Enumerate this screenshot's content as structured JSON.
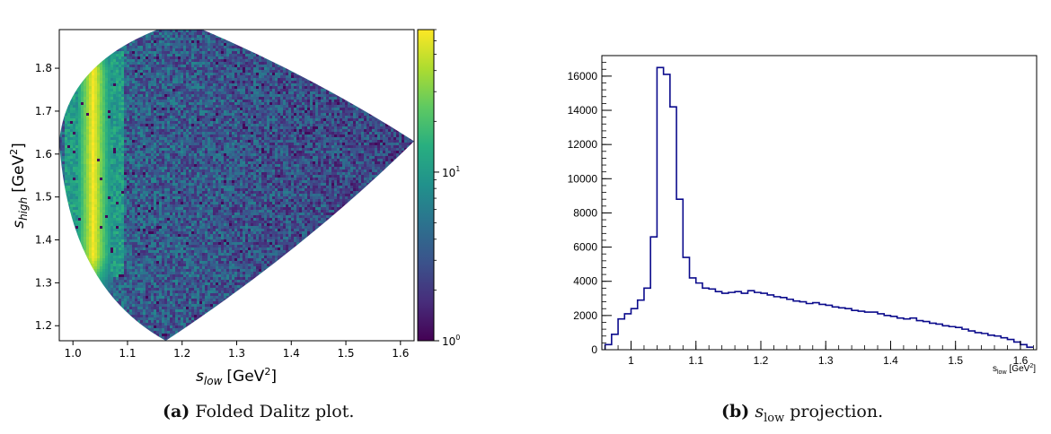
{
  "figure": {
    "left_panel": {
      "caption_tag": "(a)",
      "caption_text": "Folded Dalitz plot."
    },
    "right_panel": {
      "caption_tag": "(b)",
      "caption_symbol": "s",
      "caption_subscript": "low",
      "caption_text": "projection."
    }
  },
  "chart_data": [
    {
      "type": "heatmap",
      "xlabel": {
        "base": "s",
        "sub": "low",
        "unit": "[GeV",
        "sup": "2",
        "close": "]"
      },
      "ylabel": {
        "base": "s",
        "sub": "high",
        "unit": "[GeV",
        "sup": "2",
        "close": "]"
      },
      "xlim": [
        0.975,
        1.625
      ],
      "ylim": [
        1.165,
        1.89
      ],
      "xticks": [
        "1.0",
        "1.1",
        "1.2",
        "1.3",
        "1.4",
        "1.5",
        "1.6"
      ],
      "yticks": [
        "1.2",
        "1.3",
        "1.4",
        "1.5",
        "1.6",
        "1.7",
        "1.8"
      ],
      "boundary": {
        "apex": [
          1.625,
          1.63
        ],
        "bottom": [
          1.17,
          1.165
        ],
        "top_start": [
          1.155,
          1.89
        ],
        "left_edge": [
          0.975,
          1.63
        ]
      },
      "band": {
        "center": 1.035,
        "width": 0.03,
        "ymin": 1.34,
        "ymax": 1.84
      },
      "colorbar": {
        "scale": "log",
        "range": [
          1,
          70
        ],
        "labels": [
          {
            "base": "10",
            "exp": "0",
            "value": 1
          },
          {
            "base": "10",
            "exp": "1",
            "value": 10
          }
        ],
        "colors": [
          "#440154",
          "#472d7b",
          "#3b528b",
          "#2c728e",
          "#21918c",
          "#28ae80",
          "#5ec962",
          "#addc30",
          "#fde725"
        ]
      }
    },
    {
      "type": "step",
      "xlabel": {
        "base": "s",
        "sub": "low",
        "unit": "[GeV",
        "sup": "2",
        "close": "]"
      },
      "xlim": [
        0.955,
        1.625
      ],
      "ylim": [
        0,
        17200
      ],
      "xticks": [
        "1",
        "1.1",
        "1.2",
        "1.3",
        "1.4",
        "1.5",
        "1.6"
      ],
      "yticks": [
        "0",
        "2000",
        "4000",
        "6000",
        "8000",
        "10000",
        "12000",
        "14000",
        "16000"
      ],
      "line_color": "#0b0b8c",
      "bin_width": 0.01,
      "x_start": 0.96,
      "values": [
        300,
        900,
        1800,
        2100,
        2400,
        2900,
        3600,
        6600,
        16500,
        16100,
        14200,
        8800,
        5400,
        4200,
        3900,
        3600,
        3550,
        3400,
        3300,
        3350,
        3400,
        3300,
        3450,
        3350,
        3300,
        3200,
        3100,
        3050,
        2950,
        2850,
        2800,
        2700,
        2750,
        2650,
        2600,
        2500,
        2450,
        2400,
        2300,
        2250,
        2200,
        2200,
        2100,
        2000,
        1950,
        1850,
        1800,
        1850,
        1700,
        1650,
        1550,
        1500,
        1400,
        1350,
        1300,
        1200,
        1100,
        1000,
        950,
        850,
        800,
        700,
        600,
        450,
        300,
        150
      ]
    }
  ]
}
